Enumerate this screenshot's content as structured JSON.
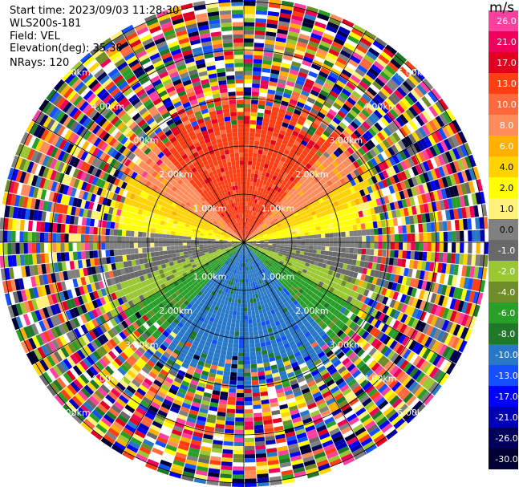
{
  "info": {
    "start_time": "Start time: 2023/09/03 11:28:30",
    "instrument": "WLS200s-181",
    "field": "Field: VEL",
    "elevation": "Elevation(deg): 35.30",
    "nrays": "NRays: 120"
  },
  "chart_data": {
    "type": "heatmap",
    "projection": "polar-ppi",
    "field": "VEL",
    "nrays": 120,
    "range_rings_km": [
      1.0,
      2.0,
      3.0,
      4.0,
      5.0
    ],
    "range_labels": [
      "1.00km",
      "2.00km",
      "3.00km",
      "4.00km",
      "5.00km"
    ],
    "max_range_km": 7.0,
    "colorbar": {
      "title": "m/s",
      "ticks": [
        "26.0",
        "21.0",
        "17.0",
        "13.0",
        "10.0",
        "8.0",
        "6.0",
        "4.0",
        "2.0",
        "1.0",
        "0.0",
        "-1.0",
        "-2.0",
        "-4.0",
        "-6.0",
        "-8.0",
        "-10.0",
        "-13.0",
        "-17.0",
        "-21.0",
        "-26.0",
        "-30.0"
      ],
      "colors": [
        "#ff3fa0",
        "#f0005a",
        "#e10020",
        "#ff3e14",
        "#ff6a3c",
        "#ff8c5a",
        "#ffb000",
        "#ffd200",
        "#ffff00",
        "#fff27a",
        "#808080",
        "#696969",
        "#9ac832",
        "#6e8c28",
        "#28a028",
        "#1e7828",
        "#2878c8",
        "#1450ff",
        "#0000ff",
        "#0000b4",
        "#00005a",
        "#000032"
      ]
    },
    "pattern": "inner region approx. 0-3 km shows coherent radial velocity: positive (red/orange/yellow) to the north, near-zero (grey) east-west band, negative (green/blue) to the south; beyond approx. 3 km the field is noisy speckle over the full color scale"
  }
}
